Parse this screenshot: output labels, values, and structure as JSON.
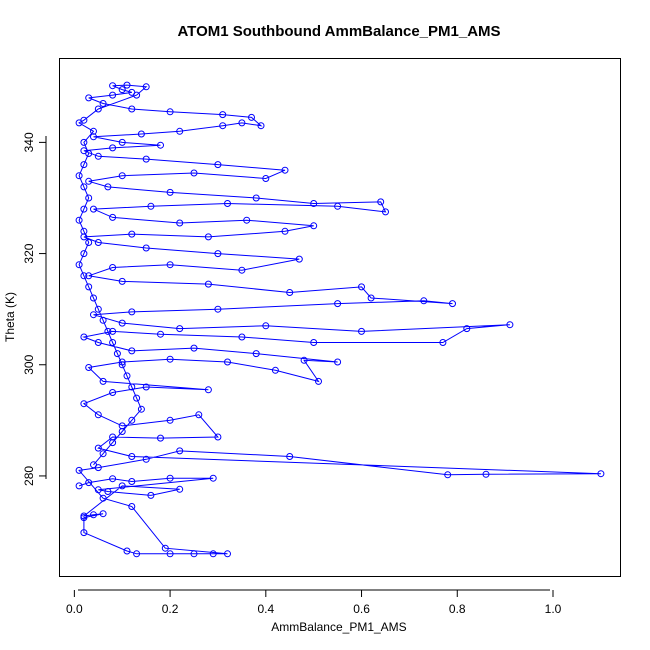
{
  "chart_data": {
    "type": "scatter",
    "title": "ATOM1 Southbound AmmBalance_PM1_AMS",
    "xlabel": "AmmBalance_PM1_AMS",
    "ylabel": "Theta (K)",
    "xlim": [
      -0.03,
      1.14
    ],
    "ylim": [
      262,
      355
    ],
    "xticks": [
      0.0,
      0.2,
      0.4,
      0.6,
      0.8,
      1.0
    ],
    "xtick_labels": [
      "0.0",
      "0.2",
      "0.4",
      "0.6",
      "0.8",
      "1.0"
    ],
    "yticks": [
      280,
      300,
      320,
      340
    ],
    "ytick_labels": [
      "280",
      "300",
      "320",
      "340"
    ],
    "grid": false,
    "marker": "open-circle",
    "connected": true,
    "color": "#0000ff",
    "series": [
      {
        "points": [
          [
            0.01,
            278.2
          ],
          [
            0.03,
            278.8
          ],
          [
            0.08,
            279.5
          ],
          [
            0.12,
            279.0
          ],
          [
            0.2,
            279.6
          ],
          [
            0.29,
            279.6
          ],
          [
            0.05,
            277.5
          ],
          [
            0.07,
            277.2
          ],
          [
            0.16,
            276.5
          ],
          [
            0.22,
            277.6
          ],
          [
            0.1,
            278.2
          ],
          [
            0.02,
            272.8
          ],
          [
            0.04,
            273.0
          ],
          [
            0.06,
            273.2
          ],
          [
            0.02,
            272.5
          ],
          [
            0.02,
            269.8
          ],
          [
            0.11,
            266.5
          ],
          [
            0.13,
            266.0
          ],
          [
            0.2,
            266.0
          ],
          [
            0.25,
            266.0
          ],
          [
            0.29,
            266.0
          ],
          [
            0.32,
            266.0
          ],
          [
            0.19,
            267.0
          ],
          [
            0.12,
            274.5
          ],
          [
            0.06,
            276.0
          ],
          [
            0.01,
            281.0
          ],
          [
            0.05,
            281.5
          ],
          [
            0.15,
            283.0
          ],
          [
            0.22,
            284.5
          ],
          [
            0.45,
            283.5
          ],
          [
            0.78,
            280.2
          ],
          [
            0.86,
            280.3
          ],
          [
            1.1,
            280.4
          ],
          [
            0.12,
            283.5
          ],
          [
            0.05,
            285.0
          ],
          [
            0.08,
            287.0
          ],
          [
            0.18,
            286.8
          ],
          [
            0.3,
            287.0
          ],
          [
            0.26,
            291.0
          ],
          [
            0.2,
            290.0
          ],
          [
            0.1,
            289.0
          ],
          [
            0.05,
            291.0
          ],
          [
            0.02,
            293.0
          ],
          [
            0.08,
            295.0
          ],
          [
            0.15,
            296.0
          ],
          [
            0.28,
            295.5
          ],
          [
            0.06,
            297.0
          ],
          [
            0.03,
            299.5
          ],
          [
            0.1,
            300.5
          ],
          [
            0.2,
            301.0
          ],
          [
            0.32,
            300.5
          ],
          [
            0.42,
            299.0
          ],
          [
            0.51,
            297.0
          ],
          [
            0.48,
            300.8
          ],
          [
            0.55,
            300.5
          ],
          [
            0.38,
            302.0
          ],
          [
            0.25,
            303.0
          ],
          [
            0.12,
            302.5
          ],
          [
            0.05,
            304.0
          ],
          [
            0.02,
            305.0
          ],
          [
            0.08,
            306.0
          ],
          [
            0.18,
            305.5
          ],
          [
            0.35,
            305.0
          ],
          [
            0.5,
            304.0
          ],
          [
            0.77,
            304.0
          ],
          [
            0.82,
            306.5
          ],
          [
            0.91,
            307.2
          ],
          [
            0.6,
            306.0
          ],
          [
            0.4,
            307.0
          ],
          [
            0.22,
            306.5
          ],
          [
            0.1,
            307.5
          ],
          [
            0.04,
            309.0
          ],
          [
            0.12,
            309.5
          ],
          [
            0.3,
            310.0
          ],
          [
            0.55,
            311.0
          ],
          [
            0.73,
            311.5
          ],
          [
            0.79,
            311.0
          ],
          [
            0.62,
            312.0
          ],
          [
            0.6,
            314.0
          ],
          [
            0.45,
            313.0
          ],
          [
            0.28,
            314.5
          ],
          [
            0.1,
            315.0
          ],
          [
            0.03,
            316.0
          ],
          [
            0.08,
            317.5
          ],
          [
            0.2,
            318.0
          ],
          [
            0.35,
            317.0
          ],
          [
            0.47,
            319.0
          ],
          [
            0.3,
            320.0
          ],
          [
            0.15,
            321.0
          ],
          [
            0.05,
            322.0
          ],
          [
            0.02,
            323.0
          ],
          [
            0.12,
            323.5
          ],
          [
            0.28,
            323.0
          ],
          [
            0.44,
            324.0
          ],
          [
            0.5,
            325.0
          ],
          [
            0.36,
            326.0
          ],
          [
            0.22,
            325.5
          ],
          [
            0.08,
            326.5
          ],
          [
            0.04,
            328.0
          ],
          [
            0.16,
            328.5
          ],
          [
            0.32,
            329.0
          ],
          [
            0.55,
            328.5
          ],
          [
            0.65,
            327.5
          ],
          [
            0.64,
            329.3
          ],
          [
            0.5,
            329.0
          ],
          [
            0.38,
            330.0
          ],
          [
            0.2,
            331.0
          ],
          [
            0.07,
            332.0
          ],
          [
            0.03,
            333.0
          ],
          [
            0.1,
            334.0
          ],
          [
            0.25,
            334.5
          ],
          [
            0.4,
            333.5
          ],
          [
            0.44,
            335.0
          ],
          [
            0.3,
            336.0
          ],
          [
            0.15,
            337.0
          ],
          [
            0.05,
            337.5
          ],
          [
            0.02,
            338.5
          ],
          [
            0.08,
            339.0
          ],
          [
            0.18,
            339.5
          ],
          [
            0.1,
            340.0
          ],
          [
            0.04,
            341.0
          ],
          [
            0.14,
            341.5
          ],
          [
            0.22,
            342.0
          ],
          [
            0.31,
            343.0
          ],
          [
            0.35,
            343.5
          ],
          [
            0.39,
            343.0
          ],
          [
            0.37,
            344.5
          ],
          [
            0.31,
            345.0
          ],
          [
            0.2,
            345.5
          ],
          [
            0.12,
            346.0
          ],
          [
            0.06,
            347.0
          ],
          [
            0.03,
            348.0
          ],
          [
            0.08,
            348.5
          ],
          [
            0.12,
            349.0
          ],
          [
            0.1,
            349.5
          ],
          [
            0.08,
            350.2
          ],
          [
            0.11,
            350.3
          ],
          [
            0.15,
            350.0
          ],
          [
            0.13,
            348.5
          ],
          [
            0.05,
            346.0
          ],
          [
            0.02,
            344.0
          ],
          [
            0.01,
            343.5
          ],
          [
            0.04,
            342.0
          ],
          [
            0.02,
            340.0
          ],
          [
            0.03,
            338.0
          ],
          [
            0.02,
            336.0
          ],
          [
            0.01,
            334.0
          ],
          [
            0.02,
            332.0
          ],
          [
            0.03,
            330.0
          ],
          [
            0.02,
            328.0
          ],
          [
            0.01,
            326.0
          ],
          [
            0.02,
            324.0
          ],
          [
            0.03,
            322.0
          ],
          [
            0.02,
            320.0
          ],
          [
            0.01,
            318.0
          ],
          [
            0.02,
            316.0
          ],
          [
            0.03,
            314.0
          ],
          [
            0.04,
            312.0
          ],
          [
            0.05,
            310.0
          ],
          [
            0.06,
            308.0
          ],
          [
            0.07,
            306.0
          ],
          [
            0.08,
            304.0
          ],
          [
            0.09,
            302.0
          ],
          [
            0.1,
            300.0
          ],
          [
            0.11,
            298.0
          ],
          [
            0.12,
            296.0
          ],
          [
            0.13,
            294.0
          ],
          [
            0.14,
            292.0
          ],
          [
            0.12,
            290.0
          ],
          [
            0.1,
            288.0
          ],
          [
            0.08,
            286.0
          ],
          [
            0.06,
            284.0
          ],
          [
            0.04,
            282.0
          ]
        ]
      }
    ]
  }
}
